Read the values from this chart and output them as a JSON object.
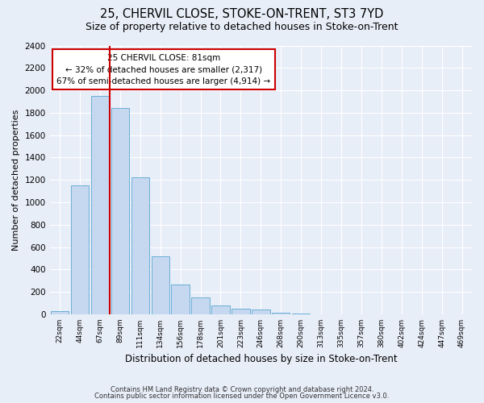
{
  "title": "25, CHERVIL CLOSE, STOKE-ON-TRENT, ST3 7YD",
  "subtitle": "Size of property relative to detached houses in Stoke-on-Trent",
  "xlabel": "Distribution of detached houses by size in Stoke-on-Trent",
  "ylabel": "Number of detached properties",
  "footnote1": "Contains HM Land Registry data © Crown copyright and database right 2024.",
  "footnote2": "Contains public sector information licensed under the Open Government Licence v3.0.",
  "bar_labels": [
    "22sqm",
    "44sqm",
    "67sqm",
    "89sqm",
    "111sqm",
    "134sqm",
    "156sqm",
    "178sqm",
    "201sqm",
    "223sqm",
    "246sqm",
    "268sqm",
    "290sqm",
    "313sqm",
    "335sqm",
    "357sqm",
    "380sqm",
    "402sqm",
    "424sqm",
    "447sqm",
    "469sqm"
  ],
  "bar_values": [
    25,
    1150,
    1950,
    1840,
    1220,
    520,
    265,
    150,
    80,
    50,
    40,
    15,
    8,
    3,
    2,
    1,
    1,
    0,
    0,
    0,
    0
  ],
  "bar_color": "#c5d8ef",
  "bar_edge_color": "#6aaed6",
  "vline_color": "#cc0000",
  "annotation_title": "25 CHERVIL CLOSE: 81sqm",
  "annotation_line1": "← 32% of detached houses are smaller (2,317)",
  "annotation_line2": "67% of semi-detached houses are larger (4,914) →",
  "annotation_box_color": "#ffffff",
  "annotation_box_edge_color": "#cc0000",
  "ylim": [
    0,
    2400
  ],
  "yticks": [
    0,
    200,
    400,
    600,
    800,
    1000,
    1200,
    1400,
    1600,
    1800,
    2000,
    2200,
    2400
  ],
  "background_color": "#e8eef8",
  "plot_background_color": "#e8eef8",
  "grid_color": "#ffffff",
  "title_fontsize": 10.5,
  "subtitle_fontsize": 9
}
